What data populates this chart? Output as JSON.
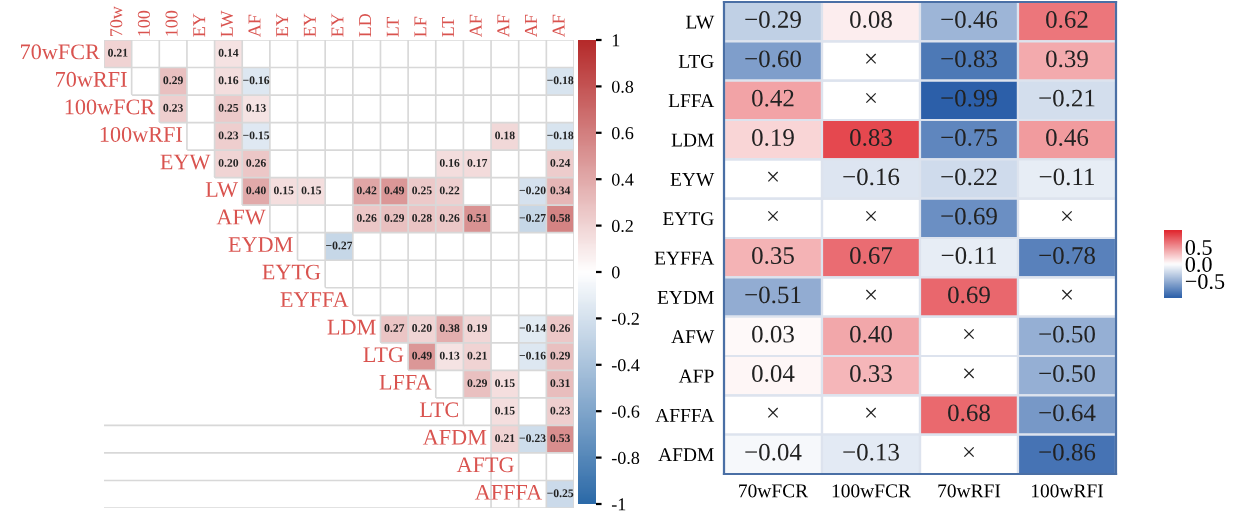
{
  "chart_data": [
    {
      "type": "heatmap",
      "categories": [
        "70w",
        "100",
        "100",
        "EY",
        "LW",
        "AF",
        "EY",
        "EY",
        "EY",
        "LD",
        "LT",
        "LF",
        "LT",
        "AF",
        "AF",
        "AF",
        "AF"
      ],
      "y_categories": [
        "70wFCR",
        "70wRFI",
        "100wFCR",
        "100wRFI",
        "EYW",
        "LW",
        "AFW",
        "EYDM",
        "EYTG",
        "EYFFA",
        "LDM",
        "LTG",
        "LFFA",
        "LTC",
        "AFDM",
        "AFTG",
        "AFFFA"
      ],
      "cells": [
        [
          0.21,
          null,
          null,
          null,
          0.14,
          null,
          null,
          null,
          null,
          null,
          null,
          null,
          null,
          null,
          null,
          null,
          null
        ],
        [
          null,
          null,
          0.29,
          null,
          0.16,
          -0.16,
          null,
          null,
          null,
          null,
          null,
          null,
          null,
          null,
          null,
          null,
          -0.18
        ],
        [
          null,
          null,
          0.23,
          null,
          0.25,
          0.13,
          null,
          null,
          null,
          null,
          null,
          null,
          null,
          null,
          null,
          null,
          null
        ],
        [
          null,
          null,
          null,
          null,
          0.23,
          -0.15,
          null,
          null,
          null,
          null,
          null,
          null,
          null,
          null,
          0.18,
          null,
          -0.18
        ],
        [
          null,
          null,
          null,
          null,
          0.2,
          0.26,
          null,
          null,
          null,
          null,
          null,
          null,
          0.16,
          0.17,
          null,
          null,
          0.24
        ],
        [
          null,
          null,
          null,
          null,
          null,
          0.4,
          0.15,
          0.15,
          null,
          0.42,
          0.49,
          0.25,
          0.22,
          null,
          null,
          -0.2,
          0.34
        ],
        [
          null,
          null,
          null,
          null,
          null,
          null,
          null,
          null,
          null,
          0.26,
          0.29,
          0.28,
          0.26,
          0.51,
          null,
          -0.27,
          0.58
        ],
        [
          null,
          null,
          null,
          null,
          null,
          null,
          null,
          null,
          -0.27,
          null,
          null,
          null,
          null,
          null,
          null,
          null,
          null
        ],
        [
          null,
          null,
          null,
          null,
          null,
          null,
          null,
          null,
          null,
          null,
          null,
          null,
          null,
          null,
          null,
          null,
          null
        ],
        [
          null,
          null,
          null,
          null,
          null,
          null,
          null,
          null,
          null,
          null,
          null,
          null,
          null,
          null,
          null,
          null,
          null
        ],
        [
          null,
          null,
          null,
          null,
          null,
          null,
          null,
          null,
          null,
          null,
          0.27,
          0.2,
          0.38,
          0.19,
          null,
          -0.14,
          0.26
        ],
        [
          null,
          null,
          null,
          null,
          null,
          null,
          null,
          null,
          null,
          null,
          null,
          0.49,
          0.13,
          0.21,
          null,
          -0.16,
          0.29
        ],
        [
          null,
          null,
          null,
          null,
          null,
          null,
          null,
          null,
          null,
          null,
          null,
          null,
          null,
          0.29,
          0.15,
          null,
          0.31
        ],
        [
          null,
          null,
          null,
          null,
          null,
          null,
          null,
          null,
          null,
          null,
          null,
          null,
          null,
          null,
          0.15,
          null,
          0.23
        ],
        [
          null,
          null,
          null,
          null,
          null,
          null,
          null,
          null,
          null,
          null,
          null,
          null,
          null,
          null,
          0.21,
          -0.23,
          0.53
        ],
        [
          null,
          null,
          null,
          null,
          null,
          null,
          null,
          null,
          null,
          null,
          null,
          null,
          null,
          null,
          null,
          null,
          null
        ],
        [
          null,
          null,
          null,
          null,
          null,
          null,
          null,
          null,
          null,
          null,
          null,
          null,
          null,
          null,
          null,
          null,
          -0.25
        ]
      ],
      "cell_labels": [
        [
          "0.21",
          null,
          null,
          null,
          "0.14",
          null,
          null,
          null,
          null,
          null,
          null,
          null,
          null,
          null,
          null,
          null,
          null
        ],
        [
          null,
          null,
          "0.29",
          null,
          "0.16",
          "−0.16",
          null,
          null,
          null,
          null,
          null,
          null,
          null,
          null,
          null,
          null,
          "−0.18"
        ],
        [
          null,
          null,
          "0.23",
          null,
          "0.25",
          "0.13",
          null,
          null,
          null,
          null,
          null,
          null,
          null,
          null,
          null,
          null,
          null
        ],
        [
          null,
          null,
          null,
          null,
          "0.23",
          "−0.15",
          null,
          null,
          null,
          null,
          null,
          null,
          null,
          null,
          "0.18",
          null,
          "−0.18"
        ],
        [
          null,
          null,
          null,
          null,
          "0.20",
          "0.26",
          null,
          null,
          null,
          null,
          null,
          null,
          "0.16",
          "0.17",
          null,
          null,
          "0.24"
        ],
        [
          null,
          null,
          null,
          null,
          null,
          "0.40",
          "0.15",
          "0.15",
          null,
          "0.42",
          "0.49",
          "0.25",
          "0.22",
          null,
          null,
          "−0.20",
          "0.34"
        ],
        [
          null,
          null,
          null,
          null,
          null,
          null,
          null,
          null,
          null,
          "0.26",
          "0.29",
          "0.28",
          "0.26",
          "0.51",
          null,
          "−0.27",
          "0.58"
        ],
        [
          null,
          null,
          null,
          null,
          null,
          null,
          null,
          null,
          "−0.27",
          null,
          null,
          null,
          null,
          null,
          null,
          null,
          null
        ],
        [
          null,
          null,
          null,
          null,
          null,
          null,
          null,
          null,
          null,
          null,
          null,
          null,
          null,
          null,
          null,
          null,
          null
        ],
        [
          null,
          null,
          null,
          null,
          null,
          null,
          null,
          null,
          null,
          null,
          null,
          null,
          null,
          null,
          null,
          null,
          null
        ],
        [
          null,
          null,
          null,
          null,
          null,
          null,
          null,
          null,
          null,
          null,
          "0.27",
          "0.20",
          "0.38",
          "0.19",
          null,
          "−0.14",
          "0.26"
        ],
        [
          null,
          null,
          null,
          null,
          null,
          null,
          null,
          null,
          null,
          null,
          null,
          "0.49",
          "0.13",
          "0.21",
          null,
          "−0.16",
          "0.29"
        ],
        [
          null,
          null,
          null,
          null,
          null,
          null,
          null,
          null,
          null,
          null,
          null,
          null,
          null,
          "0.29",
          "0.15",
          null,
          "0.31"
        ],
        [
          null,
          null,
          null,
          null,
          null,
          null,
          null,
          null,
          null,
          null,
          null,
          null,
          null,
          null,
          "0.15",
          null,
          "0.23"
        ],
        [
          null,
          null,
          null,
          null,
          null,
          null,
          null,
          null,
          null,
          null,
          null,
          null,
          null,
          null,
          "0.21",
          "−0.23",
          "0.53"
        ],
        [
          null,
          null,
          null,
          null,
          null,
          null,
          null,
          null,
          null,
          null,
          null,
          null,
          null,
          null,
          null,
          null,
          null
        ],
        [
          null,
          null,
          null,
          null,
          null,
          null,
          null,
          null,
          null,
          null,
          null,
          null,
          null,
          null,
          null,
          null,
          "−0.25"
        ]
      ],
      "grid": true,
      "clim": [
        -1,
        1
      ],
      "cticks": [
        1,
        0.8,
        0.6,
        0.4,
        0.2,
        0,
        -0.2,
        -0.4,
        -0.6,
        -0.8,
        -1
      ]
    },
    {
      "type": "heatmap",
      "categories": [
        "70wFCR",
        "100wFCR",
        "70wRFI",
        "100wRFI"
      ],
      "y_categories": [
        "LW",
        "LTG",
        "LFFA",
        "LDM",
        "EYW",
        "EYTG",
        "EYFFA",
        "EYDM",
        "AFW",
        "AFP",
        "AFFFA",
        "AFDM"
      ],
      "cells": [
        [
          -0.29,
          0.08,
          -0.46,
          0.62
        ],
        [
          -0.6,
          null,
          -0.83,
          0.39
        ],
        [
          0.42,
          null,
          -0.99,
          -0.21
        ],
        [
          0.19,
          0.83,
          -0.75,
          0.46
        ],
        [
          null,
          -0.16,
          -0.22,
          -0.11
        ],
        [
          null,
          null,
          -0.69,
          null
        ],
        [
          0.35,
          0.67,
          -0.11,
          -0.78
        ],
        [
          -0.51,
          null,
          0.69,
          null
        ],
        [
          0.03,
          0.4,
          null,
          -0.5
        ],
        [
          0.04,
          0.33,
          null,
          -0.5
        ],
        [
          null,
          null,
          0.68,
          -0.64
        ],
        [
          -0.04,
          -0.13,
          null,
          -0.86
        ]
      ],
      "cell_labels": [
        [
          "−0.29",
          "0.08",
          "−0.46",
          "0.62"
        ],
        [
          "−0.60",
          "×",
          "−0.83",
          "0.39"
        ],
        [
          "0.42",
          "×",
          "−0.99",
          "−0.21"
        ],
        [
          "0.19",
          "0.83",
          "−0.75",
          "0.46"
        ],
        [
          "×",
          "−0.16",
          "−0.22",
          "−0.11"
        ],
        [
          "×",
          "×",
          "−0.69",
          "×"
        ],
        [
          "0.35",
          "0.67",
          "−0.11",
          "−0.78"
        ],
        [
          "−0.51",
          "×",
          "0.69",
          "×"
        ],
        [
          "0.03",
          "0.40",
          "×",
          "−0.50"
        ],
        [
          "0.04",
          "0.33",
          "×",
          "−0.50"
        ],
        [
          "×",
          "×",
          "0.68",
          "−0.64"
        ],
        [
          "−0.04",
          "−0.13",
          "×",
          "−0.86"
        ]
      ],
      "clim": [
        -1,
        1
      ],
      "cticks": [
        {
          "value": 0.5,
          "label": "0.5"
        },
        {
          "value": 0,
          "label": "0.0"
        },
        {
          "value": -0.5,
          "label": "−0.5"
        }
      ]
    }
  ]
}
